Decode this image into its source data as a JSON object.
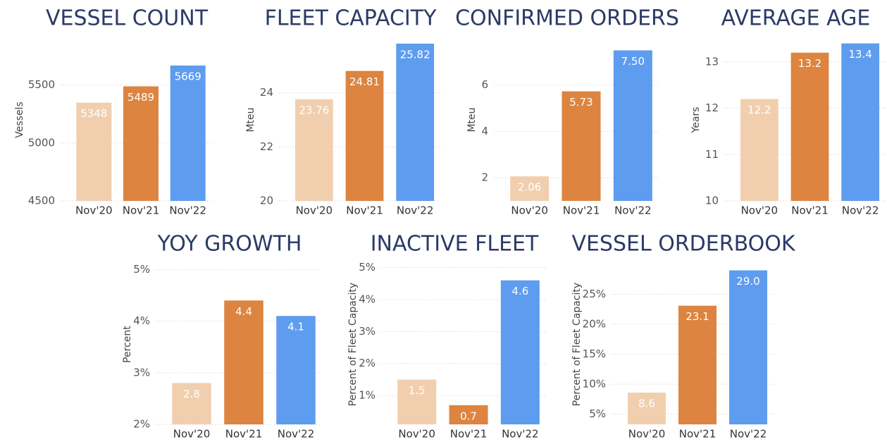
{
  "chart_data": [
    {
      "type": "bar",
      "title": "VESSEL COUNT",
      "y_label": "Vessels",
      "categories": [
        "Nov'20",
        "Nov'21",
        "Nov'22"
      ],
      "values": [
        5348,
        5489,
        5669
      ],
      "colors": [
        "#f1cfae",
        "#dc8440",
        "#5e9cef"
      ],
      "ylim": [
        4500,
        5900
      ],
      "yticks": [
        4500,
        5000,
        5500
      ],
      "grid": true
    },
    {
      "type": "bar",
      "title": "FLEET CAPACITY",
      "y_label": "Mteu",
      "categories": [
        "Nov'20",
        "Nov'21",
        "Nov'22"
      ],
      "values": [
        23.76,
        24.81,
        25.82
      ],
      "colors": [
        "#f1cfae",
        "#dc8440",
        "#5e9cef"
      ],
      "ylim": [
        20,
        26
      ],
      "yticks": [
        20,
        22,
        24
      ],
      "grid": true
    },
    {
      "type": "bar",
      "title": "CONFIRMED ORDERS",
      "y_label": "Mteu",
      "categories": [
        "Nov'20",
        "Nov'21",
        "Nov'22"
      ],
      "values": [
        2.06,
        5.73,
        7.5
      ],
      "value_labels": [
        "2.06",
        "5.73",
        "7.50"
      ],
      "colors": [
        "#f1cfae",
        "#dc8440",
        "#5e9cef"
      ],
      "ylim": [
        1,
        8
      ],
      "yticks": [
        2,
        4,
        6
      ],
      "grid": true
    },
    {
      "type": "bar",
      "title": "AVERAGE AGE",
      "y_label": "Years",
      "categories": [
        "Nov'20",
        "Nov'21",
        "Nov'22"
      ],
      "values": [
        12.2,
        13.2,
        13.4
      ],
      "colors": [
        "#f1cfae",
        "#dc8440",
        "#5e9cef"
      ],
      "ylim": [
        10,
        13.5
      ],
      "yticks": [
        10,
        11,
        12,
        13
      ],
      "grid": true
    },
    {
      "type": "bar",
      "title": "YOY GROWTH",
      "y_label": "Percent",
      "categories": [
        "Nov'20",
        "Nov'21",
        "Nov'22"
      ],
      "values": [
        2.8,
        4.4,
        4.1
      ],
      "colors": [
        "#f1cfae",
        "#dc8440",
        "#5e9cef"
      ],
      "ylim": [
        2,
        5.1
      ],
      "yticks": [
        {
          "value": 2,
          "label": "2%"
        },
        {
          "value": 3,
          "label": "3%"
        },
        {
          "value": 4,
          "label": "4%"
        },
        {
          "value": 5,
          "label": "5%"
        }
      ],
      "grid": true
    },
    {
      "type": "bar",
      "title": "INACTIVE FLEET",
      "y_label": "Percent of Fleet Capacity",
      "categories": [
        "Nov'20",
        "Nov'21",
        "Nov'22"
      ],
      "values": [
        1.5,
        0.7,
        4.6
      ],
      "colors": [
        "#f1cfae",
        "#dc8440",
        "#5e9cef"
      ],
      "ylim": [
        0.1,
        5.1
      ],
      "yticks": [
        {
          "value": 1,
          "label": "1%"
        },
        {
          "value": 2,
          "label": "2%"
        },
        {
          "value": 3,
          "label": "3%"
        },
        {
          "value": 4,
          "label": "4%"
        },
        {
          "value": 5,
          "label": "5%"
        }
      ],
      "grid": true
    },
    {
      "type": "bar",
      "title": "VESSEL ORDERBOOK",
      "y_label": "Percent of Fleet Capacity",
      "categories": [
        "Nov'20",
        "Nov'21",
        "Nov'22"
      ],
      "values": [
        8.6,
        23.1,
        29.0
      ],
      "value_labels": [
        "8.6",
        "23.1",
        "29.0"
      ],
      "colors": [
        "#f1cfae",
        "#dc8440",
        "#5e9cef"
      ],
      "ylim": [
        3.3,
        30
      ],
      "yticks": [
        {
          "value": 5,
          "label": "5%"
        },
        {
          "value": 10,
          "label": "10%"
        },
        {
          "value": 15,
          "label": "15%"
        },
        {
          "value": 20,
          "label": "20%"
        },
        {
          "value": 25,
          "label": "25%"
        }
      ],
      "grid": true
    }
  ]
}
